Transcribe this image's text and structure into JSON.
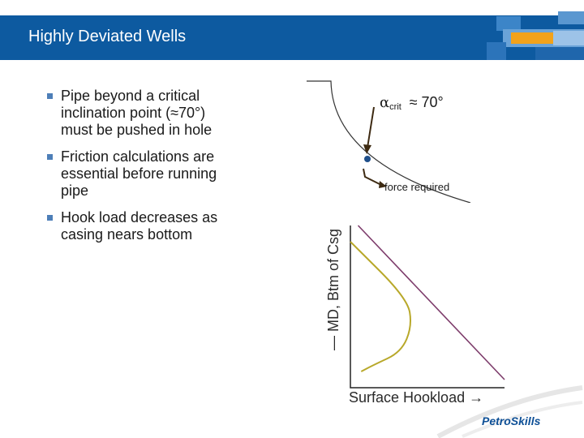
{
  "header": {
    "title": "Highly Deviated Wells"
  },
  "bullets": [
    {
      "lines": [
        "Pipe beyond a critical",
        "inclination point (≈70°)",
        "must be pushed in hole"
      ]
    },
    {
      "lines": [
        "Friction calculations are",
        "essential before running",
        "pipe"
      ]
    },
    {
      "lines": [
        "Hook load decreases as",
        "casing nears bottom"
      ]
    }
  ],
  "diagram": {
    "alpha_symbol": "α",
    "alpha_sub": "crit",
    "alpha_value": "≈ 70°",
    "force_label": "force required"
  },
  "chart": {
    "ylabel": "— MD, Btm of Csg",
    "xlabel": "Surface Hookload",
    "colors": {
      "line": "#7d3c6b",
      "curve": "#b8a82a",
      "axis": "#222222"
    }
  },
  "chart_data": {
    "type": "line",
    "xlabel": "Surface Hookload",
    "ylabel": "MD, Btm of Csg",
    "series": [
      {
        "x": [
          0.05,
          1.0
        ],
        "y": [
          0.0,
          0.95
        ]
      },
      {
        "x": [
          0.0,
          0.37,
          0.4,
          0.33,
          0.15,
          0.07
        ],
        "y": [
          0.1,
          0.45,
          0.62,
          0.78,
          0.86,
          0.9
        ]
      }
    ]
  },
  "logo": {
    "text": "PetroSkills"
  }
}
